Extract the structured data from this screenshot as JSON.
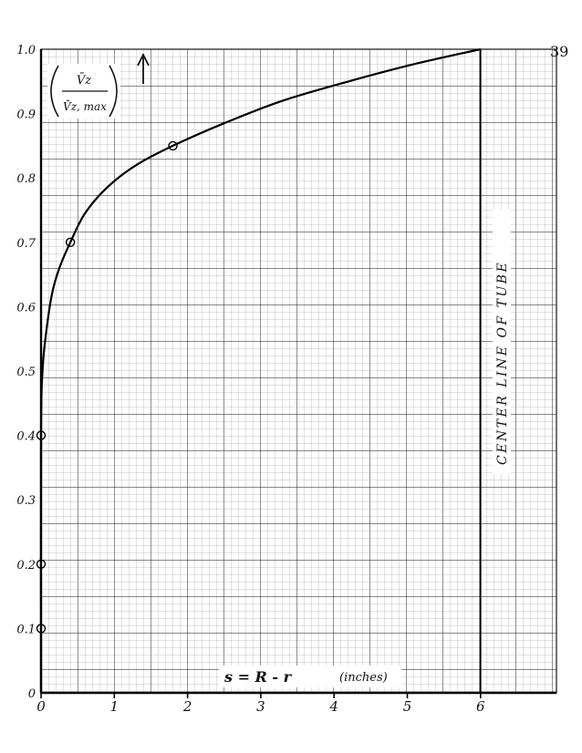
{
  "page_number": "39",
  "chart_data": {
    "type": "line",
    "title": "",
    "ylabel": {
      "numerator": "V̄z",
      "denominator": "V̄z, max"
    },
    "xlabel": {
      "prefix": "s = R - r",
      "units": "(inches)"
    },
    "xlim": [
      0,
      6
    ],
    "ylim": [
      0,
      1.0
    ],
    "x_ticks": [
      {
        "value": 0,
        "label": "0"
      },
      {
        "value": 1,
        "label": "1"
      },
      {
        "value": 2,
        "label": "2"
      },
      {
        "value": 3,
        "label": "3"
      },
      {
        "value": 4,
        "label": "4"
      },
      {
        "value": 5,
        "label": "5"
      },
      {
        "value": 6,
        "label": "6"
      }
    ],
    "y_ticks": [
      {
        "value": 0,
        "label": "0"
      },
      {
        "value": 0.1,
        "label": "0.1"
      },
      {
        "value": 0.2,
        "label": "0.2"
      },
      {
        "value": 0.3,
        "label": "0.3"
      },
      {
        "value": 0.4,
        "label": "0.4"
      },
      {
        "value": 0.5,
        "label": "0.5"
      },
      {
        "value": 0.6,
        "label": "0.6"
      },
      {
        "value": 0.7,
        "label": "0.7"
      },
      {
        "value": 0.8,
        "label": "0.8"
      },
      {
        "value": 0.9,
        "label": "0.9"
      },
      {
        "value": 1.0,
        "label": "1.0"
      }
    ],
    "grid": true,
    "series": [
      {
        "markers": "open-circle",
        "points": [
          {
            "x": 0,
            "y": 0.1
          },
          {
            "x": 0,
            "y": 0.2
          },
          {
            "x": 0,
            "y": 0.4
          },
          {
            "x": 0.4,
            "y": 0.7
          },
          {
            "x": 1.8,
            "y": 0.85
          },
          {
            "x": 6,
            "y": 1.0
          }
        ],
        "curve": [
          {
            "x": 0,
            "y": 0.0
          },
          {
            "x": 0,
            "y": 0.4
          },
          {
            "x": 0.02,
            "y": 0.5
          },
          {
            "x": 0.07,
            "y": 0.56
          },
          {
            "x": 0.15,
            "y": 0.62
          },
          {
            "x": 0.25,
            "y": 0.66
          },
          {
            "x": 0.4,
            "y": 0.7
          },
          {
            "x": 0.6,
            "y": 0.745
          },
          {
            "x": 0.9,
            "y": 0.785
          },
          {
            "x": 1.3,
            "y": 0.82
          },
          {
            "x": 1.8,
            "y": 0.85
          },
          {
            "x": 2.5,
            "y": 0.885
          },
          {
            "x": 3.3,
            "y": 0.92
          },
          {
            "x": 4.2,
            "y": 0.95
          },
          {
            "x": 5.1,
            "y": 0.977
          },
          {
            "x": 6,
            "y": 1.0
          }
        ]
      }
    ],
    "annotations": [
      {
        "text": "CENTER LINE OF TUBE",
        "x": 6,
        "orientation": "vertical"
      }
    ]
  }
}
